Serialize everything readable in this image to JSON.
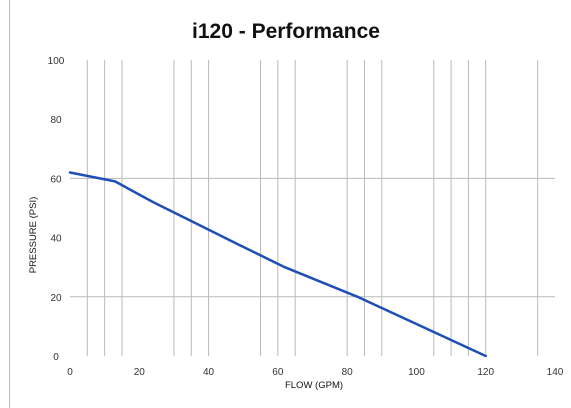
{
  "chart_data": {
    "type": "line",
    "title": "i120 - Performance",
    "xlabel": "FLOW (GPM)",
    "ylabel": "PRESSURE (PSI)",
    "xlim": [
      0,
      140
    ],
    "ylim": [
      0,
      100
    ],
    "x_ticks": [
      0,
      20,
      40,
      60,
      80,
      100,
      120,
      140
    ],
    "y_ticks": [
      0,
      20,
      40,
      60,
      80,
      100
    ],
    "x_tick_labels": [
      "0",
      "20",
      "40",
      "60",
      "80",
      "100",
      "120",
      "140"
    ],
    "y_tick_labels": [
      "0",
      "20",
      "40",
      "60",
      "80",
      "100"
    ],
    "vertical_gridlines": [
      5,
      10,
      15,
      30,
      35,
      40,
      55,
      60,
      65,
      80,
      85,
      90,
      105,
      110,
      115,
      120,
      135
    ],
    "horizontal_gridlines": [
      20,
      60
    ],
    "grid": true,
    "legend": "none",
    "line_color": "#1f4fb5",
    "grid_color": "#b9b9b9",
    "series": [
      {
        "x": [
          0,
          13,
          24,
          36,
          48,
          62,
          83,
          120
        ],
        "y": [
          62,
          59,
          52,
          45,
          38,
          30,
          20,
          0
        ]
      }
    ]
  }
}
